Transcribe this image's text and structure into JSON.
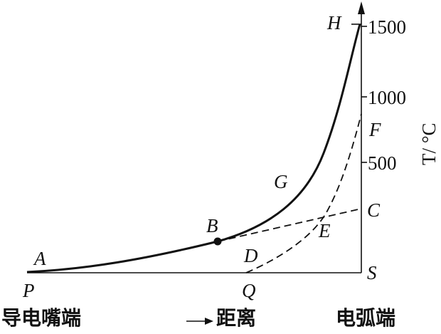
{
  "axis": {
    "unit_label": "T/ °C",
    "ticks": [
      "1500",
      "1000",
      "500"
    ]
  },
  "points": {
    "A": "A",
    "B": "B",
    "C": "C",
    "D": "D",
    "E": "E",
    "F": "F",
    "G": "G",
    "H": "H",
    "P": "P",
    "Q": "Q",
    "S": "S"
  },
  "captions": {
    "torch_end": "导电嘴端",
    "distance": "距离",
    "arc_end": "电弧端"
  }
}
